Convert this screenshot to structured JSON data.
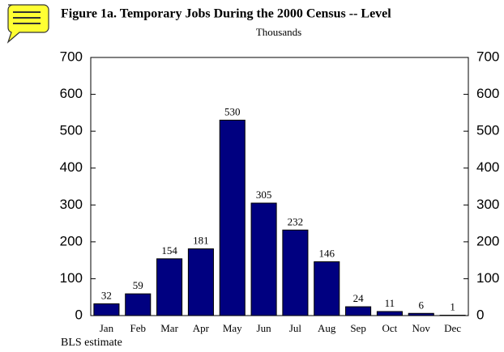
{
  "chart_data": {
    "type": "bar",
    "title": "Figure 1a.  Temporary Jobs During the 2000 Census -- Level",
    "subtitle": "Thousands",
    "note": "BLS estimate",
    "categories": [
      "Jan",
      "Feb",
      "Mar",
      "Apr",
      "May",
      "Jun",
      "Jul",
      "Aug",
      "Sep",
      "Oct",
      "Nov",
      "Dec"
    ],
    "values": [
      32,
      59,
      154,
      181,
      530,
      305,
      232,
      146,
      24,
      11,
      6,
      1
    ],
    "color": "#000080",
    "ylim": [
      0,
      700
    ],
    "yticks": [
      0,
      100,
      200,
      300,
      400,
      500,
      600,
      700
    ],
    "y2lim": [
      0,
      700
    ],
    "y2ticks": [
      0,
      100,
      200,
      300,
      400,
      500,
      600,
      700
    ],
    "grid": false
  }
}
